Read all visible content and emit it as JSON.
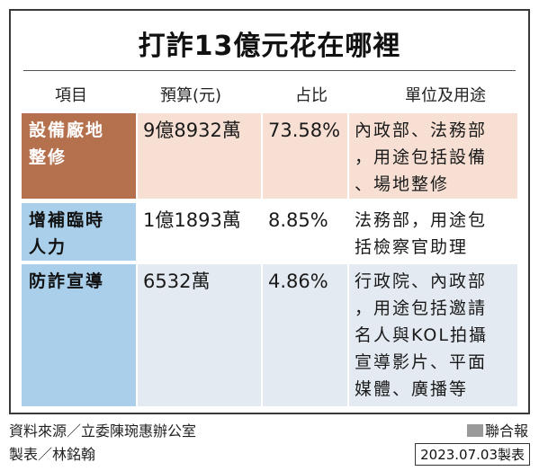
{
  "title": "打詐13億元花在哪裡",
  "headers": {
    "item": "項目",
    "budget": "預算(元)",
    "ratio": "占比",
    "unit": "單位及用途"
  },
  "rows": [
    {
      "item_lines": [
        "設備廠地",
        "整修"
      ],
      "budget": "9億8932萬",
      "ratio": "73.58%",
      "unit_lines": [
        "內政部、法務部",
        "，用途包括設備",
        "、場地整修"
      ]
    },
    {
      "item_lines": [
        "增補臨時",
        "人力"
      ],
      "budget": "1億1893萬",
      "ratio": "8.85%",
      "unit_lines": [
        "法務部，用途包",
        "括檢察官助理"
      ]
    },
    {
      "item_lines": [
        "防詐宣導"
      ],
      "budget": "6532萬",
      "ratio": "4.86%",
      "unit_lines": [
        "行政院、內政部",
        "，用途包括邀請",
        "名人與KOL拍攝",
        "宣導影片、平面",
        "媒體、廣播等"
      ]
    }
  ],
  "footer": {
    "source": "資料來源／立委陳琬惠辦公室",
    "maker": "製表／林銘翰",
    "brand": "聯合報",
    "date": "2023.07.03製表"
  },
  "colors": {
    "row1_item": "#b5714e",
    "row1_bg": "#f7e0d3",
    "row_item_blue": "#a9cfea",
    "row3_bg": "#e3eaf1"
  }
}
